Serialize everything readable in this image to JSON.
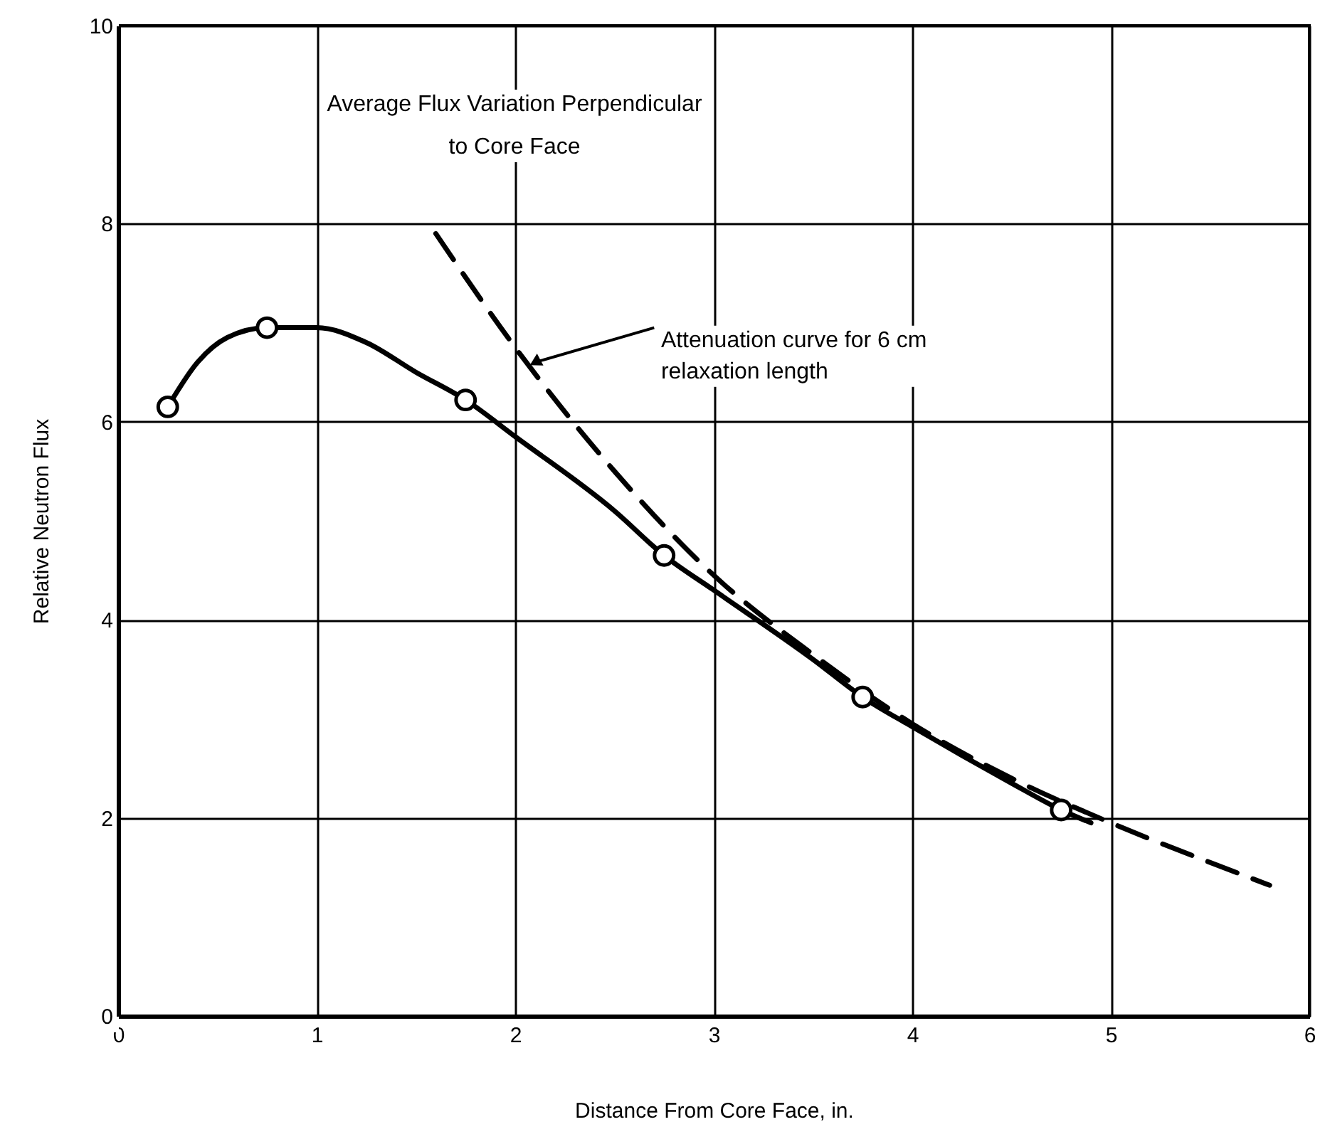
{
  "chart_data": {
    "type": "line",
    "title": [
      "Average Flux Variation Perpendicular",
      "to Core Face"
    ],
    "xlabel": "Distance From Core Face, in.",
    "ylabel": "Relative Neutron Flux",
    "xlim": [
      0,
      6
    ],
    "xticks": [
      0,
      1,
      2,
      3,
      4,
      5,
      6
    ],
    "ylim": [
      0,
      10
    ],
    "yticks": [
      0,
      2,
      4,
      6,
      8,
      10
    ],
    "grid": true,
    "series": [
      {
        "color": "#000000",
        "line_style": "solid",
        "x": [
          0.25,
          0.4,
          0.55,
          0.75,
          1.0,
          1.25,
          1.5,
          1.75,
          2.0,
          2.5,
          2.75,
          3.0,
          3.5,
          3.75,
          4.0,
          4.5,
          4.75,
          4.9
        ],
        "values": [
          6.15,
          6.6,
          6.85,
          6.95,
          6.95,
          6.8,
          6.5,
          6.22,
          5.85,
          5.1,
          4.65,
          4.3,
          3.6,
          3.22,
          2.92,
          2.35,
          2.08,
          1.95
        ]
      },
      {
        "color": "#000000",
        "line_style": "dashed",
        "x": [
          1.6,
          2.0,
          2.5,
          3.0,
          3.5,
          4.0,
          4.5,
          5.0,
          5.5,
          5.8
        ],
        "values": [
          7.9,
          6.75,
          5.5,
          4.45,
          3.65,
          2.95,
          2.4,
          1.95,
          1.55,
          1.32
        ]
      },
      {
        "type": "scatter",
        "color": "#000000",
        "marker": "circle",
        "x": [
          0.25,
          0.75,
          1.75,
          2.75,
          3.75,
          4.75
        ],
        "values": [
          6.15,
          6.95,
          6.22,
          4.65,
          3.22,
          2.08
        ]
      }
    ],
    "annotations": [
      {
        "text": "Attenuation curve for 6 cm relaxation length",
        "x": 2.1,
        "y": 6.6
      }
    ]
  }
}
